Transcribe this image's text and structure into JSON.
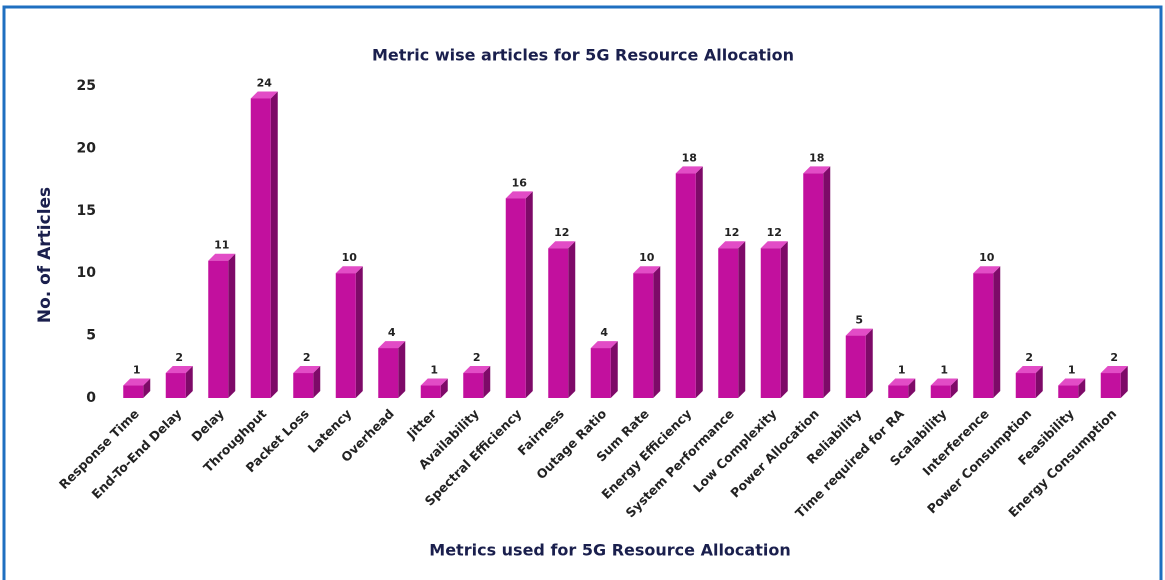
{
  "chart_data": {
    "type": "bar3d",
    "title": "Metric wise articles for 5G Resource Allocation",
    "x_label": "Metrics used for 5G Resource Allocation",
    "y_label": "No. of Articles",
    "categories": [
      "Response Time",
      "End-To-End Delay",
      "Delay",
      "Throughput",
      "Packet Loss",
      "Latency",
      "Overhead",
      "Jitter",
      "Availability",
      "Spectral Efficiency",
      "Fairness",
      "Outage Ratio",
      "Sum Rate",
      "Energy Efficiency",
      "System Performance",
      "Low Complexity",
      "Power Allocation",
      "Reliability",
      "Time required for RA",
      "Scalability",
      "Interference",
      "Power Consumption",
      "Feasibility",
      "Energy Consumption"
    ],
    "values": [
      1,
      2,
      11,
      24,
      2,
      10,
      4,
      1,
      2,
      16,
      12,
      4,
      10,
      18,
      12,
      12,
      18,
      5,
      1,
      1,
      10,
      2,
      1,
      2
    ],
    "color": "#c2109e",
    "ylim": [
      0,
      25
    ],
    "yticks": [
      0,
      5,
      10,
      15,
      20,
      25
    ],
    "grid": false
  }
}
